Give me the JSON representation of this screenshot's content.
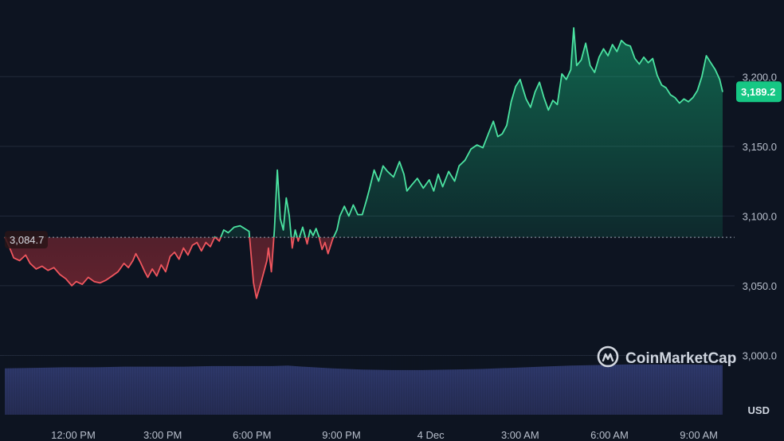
{
  "chart_data": {
    "type": "area",
    "currency": "USD",
    "y_ticks": [
      "3,200.0",
      "3,150.0",
      "3,100.0",
      "3,050.0",
      "3,000.0"
    ],
    "y_tick_values": [
      3200,
      3150,
      3100,
      3050,
      3000
    ],
    "x_ticks": [
      "12:00 PM",
      "3:00 PM",
      "6:00 PM",
      "9:00 PM",
      "4 Dec",
      "3:00 AM",
      "6:00 AM",
      "9:00 AM"
    ],
    "x_tick_hours": [
      12,
      15,
      18,
      21,
      24,
      27,
      30,
      33
    ],
    "x_range_hours": [
      9.7,
      34.2
    ],
    "ylim": [
      2958,
      3255
    ],
    "open_value": 3084.7,
    "open_label": "3,084.7",
    "last_value": 3189.2,
    "last_label": "3,189.2",
    "grid": true,
    "colors": {
      "up": "#16c784",
      "down": "#ea3943",
      "up_line": "#4be3a1",
      "down_line": "#f0565e",
      "volume": "#2b3460",
      "background": "#0d1421"
    },
    "brand": "CoinMarketCap",
    "price": [
      [
        9.7,
        3085
      ],
      [
        9.85,
        3078
      ],
      [
        10.0,
        3070
      ],
      [
        10.2,
        3068
      ],
      [
        10.4,
        3072
      ],
      [
        10.55,
        3066
      ],
      [
        10.75,
        3062
      ],
      [
        10.95,
        3064
      ],
      [
        11.15,
        3061
      ],
      [
        11.35,
        3063
      ],
      [
        11.55,
        3058
      ],
      [
        11.75,
        3055
      ],
      [
        11.95,
        3050
      ],
      [
        12.1,
        3053
      ],
      [
        12.3,
        3051
      ],
      [
        12.5,
        3056
      ],
      [
        12.7,
        3053
      ],
      [
        12.9,
        3052
      ],
      [
        13.1,
        3054
      ],
      [
        13.3,
        3057
      ],
      [
        13.5,
        3060
      ],
      [
        13.7,
        3066
      ],
      [
        13.85,
        3063
      ],
      [
        14.0,
        3068
      ],
      [
        14.1,
        3073
      ],
      [
        14.25,
        3067
      ],
      [
        14.4,
        3060
      ],
      [
        14.5,
        3056
      ],
      [
        14.65,
        3062
      ],
      [
        14.8,
        3057
      ],
      [
        14.95,
        3065
      ],
      [
        15.1,
        3060
      ],
      [
        15.25,
        3071
      ],
      [
        15.4,
        3074
      ],
      [
        15.55,
        3069
      ],
      [
        15.7,
        3077
      ],
      [
        15.85,
        3072
      ],
      [
        16.0,
        3079
      ],
      [
        16.15,
        3081
      ],
      [
        16.3,
        3075
      ],
      [
        16.45,
        3081
      ],
      [
        16.6,
        3078
      ],
      [
        16.75,
        3085
      ],
      [
        16.9,
        3082
      ],
      [
        17.05,
        3090
      ],
      [
        17.2,
        3088
      ],
      [
        17.4,
        3092
      ],
      [
        17.6,
        3093
      ],
      [
        17.75,
        3091
      ],
      [
        17.9,
        3089
      ],
      [
        18.05,
        3052
      ],
      [
        18.15,
        3041
      ],
      [
        18.3,
        3052
      ],
      [
        18.5,
        3068
      ],
      [
        18.55,
        3077
      ],
      [
        18.65,
        3060
      ],
      [
        18.75,
        3090
      ],
      [
        18.8,
        3111
      ],
      [
        18.85,
        3133
      ],
      [
        18.95,
        3098
      ],
      [
        19.05,
        3090
      ],
      [
        19.15,
        3113
      ],
      [
        19.25,
        3100
      ],
      [
        19.35,
        3077
      ],
      [
        19.45,
        3090
      ],
      [
        19.55,
        3082
      ],
      [
        19.7,
        3092
      ],
      [
        19.85,
        3080
      ],
      [
        19.95,
        3090
      ],
      [
        20.05,
        3086
      ],
      [
        20.15,
        3091
      ],
      [
        20.25,
        3085
      ],
      [
        20.35,
        3076
      ],
      [
        20.45,
        3081
      ],
      [
        20.55,
        3073
      ],
      [
        20.7,
        3083
      ],
      [
        20.85,
        3090
      ],
      [
        20.95,
        3100
      ],
      [
        21.1,
        3107
      ],
      [
        21.25,
        3100
      ],
      [
        21.4,
        3108
      ],
      [
        21.55,
        3101
      ],
      [
        21.7,
        3101
      ],
      [
        21.85,
        3112
      ],
      [
        21.95,
        3120
      ],
      [
        22.1,
        3133
      ],
      [
        22.25,
        3125
      ],
      [
        22.4,
        3136
      ],
      [
        22.55,
        3132
      ],
      [
        22.75,
        3128
      ],
      [
        22.95,
        3139
      ],
      [
        23.1,
        3130
      ],
      [
        23.2,
        3118
      ],
      [
        23.35,
        3122
      ],
      [
        23.55,
        3127
      ],
      [
        23.75,
        3120
      ],
      [
        23.95,
        3126
      ],
      [
        24.1,
        3118
      ],
      [
        24.25,
        3130
      ],
      [
        24.4,
        3121
      ],
      [
        24.6,
        3132
      ],
      [
        24.8,
        3125
      ],
      [
        24.95,
        3136
      ],
      [
        25.15,
        3140
      ],
      [
        25.35,
        3148
      ],
      [
        25.55,
        3151
      ],
      [
        25.75,
        3149
      ],
      [
        25.95,
        3160
      ],
      [
        26.1,
        3168
      ],
      [
        26.25,
        3157
      ],
      [
        26.4,
        3159
      ],
      [
        26.55,
        3165
      ],
      [
        26.7,
        3182
      ],
      [
        26.85,
        3193
      ],
      [
        27.0,
        3198
      ],
      [
        27.1,
        3191
      ],
      [
        27.2,
        3184
      ],
      [
        27.35,
        3178
      ],
      [
        27.5,
        3189
      ],
      [
        27.65,
        3196
      ],
      [
        27.8,
        3185
      ],
      [
        27.95,
        3176
      ],
      [
        28.1,
        3183
      ],
      [
        28.25,
        3180
      ],
      [
        28.4,
        3202
      ],
      [
        28.55,
        3198
      ],
      [
        28.7,
        3205
      ],
      [
        28.8,
        3235
      ],
      [
        28.9,
        3208
      ],
      [
        29.05,
        3212
      ],
      [
        29.2,
        3224
      ],
      [
        29.35,
        3208
      ],
      [
        29.5,
        3203
      ],
      [
        29.65,
        3214
      ],
      [
        29.8,
        3220
      ],
      [
        29.95,
        3215
      ],
      [
        30.1,
        3223
      ],
      [
        30.25,
        3218
      ],
      [
        30.4,
        3226
      ],
      [
        30.55,
        3223
      ],
      [
        30.7,
        3222
      ],
      [
        30.85,
        3213
      ],
      [
        31.0,
        3209
      ],
      [
        31.15,
        3214
      ],
      [
        31.3,
        3210
      ],
      [
        31.45,
        3213
      ],
      [
        31.6,
        3201
      ],
      [
        31.75,
        3194
      ],
      [
        31.9,
        3192
      ],
      [
        32.05,
        3187
      ],
      [
        32.2,
        3185
      ],
      [
        32.35,
        3181
      ],
      [
        32.5,
        3184
      ],
      [
        32.65,
        3182
      ],
      [
        32.8,
        3185
      ],
      [
        32.95,
        3190
      ],
      [
        33.1,
        3200
      ],
      [
        33.25,
        3215
      ],
      [
        33.4,
        3210
      ],
      [
        33.55,
        3205
      ],
      [
        33.7,
        3198
      ],
      [
        33.8,
        3189
      ]
    ],
    "volume": [
      [
        9.7,
        0.82
      ],
      [
        10.7,
        0.83
      ],
      [
        11.7,
        0.84
      ],
      [
        12.7,
        0.84
      ],
      [
        13.7,
        0.85
      ],
      [
        14.7,
        0.85
      ],
      [
        15.7,
        0.85
      ],
      [
        16.7,
        0.86
      ],
      [
        17.7,
        0.86
      ],
      [
        18.7,
        0.86
      ],
      [
        19.2,
        0.87
      ],
      [
        19.7,
        0.85
      ],
      [
        20.7,
        0.82
      ],
      [
        21.7,
        0.8
      ],
      [
        22.7,
        0.79
      ],
      [
        23.7,
        0.79
      ],
      [
        24.7,
        0.8
      ],
      [
        25.7,
        0.81
      ],
      [
        26.7,
        0.83
      ],
      [
        27.7,
        0.85
      ],
      [
        28.7,
        0.87
      ],
      [
        29.7,
        0.88
      ],
      [
        30.7,
        0.89
      ],
      [
        31.7,
        0.89
      ],
      [
        32.7,
        0.89
      ],
      [
        33.7,
        0.88
      ],
      [
        33.8,
        0.88
      ]
    ]
  }
}
